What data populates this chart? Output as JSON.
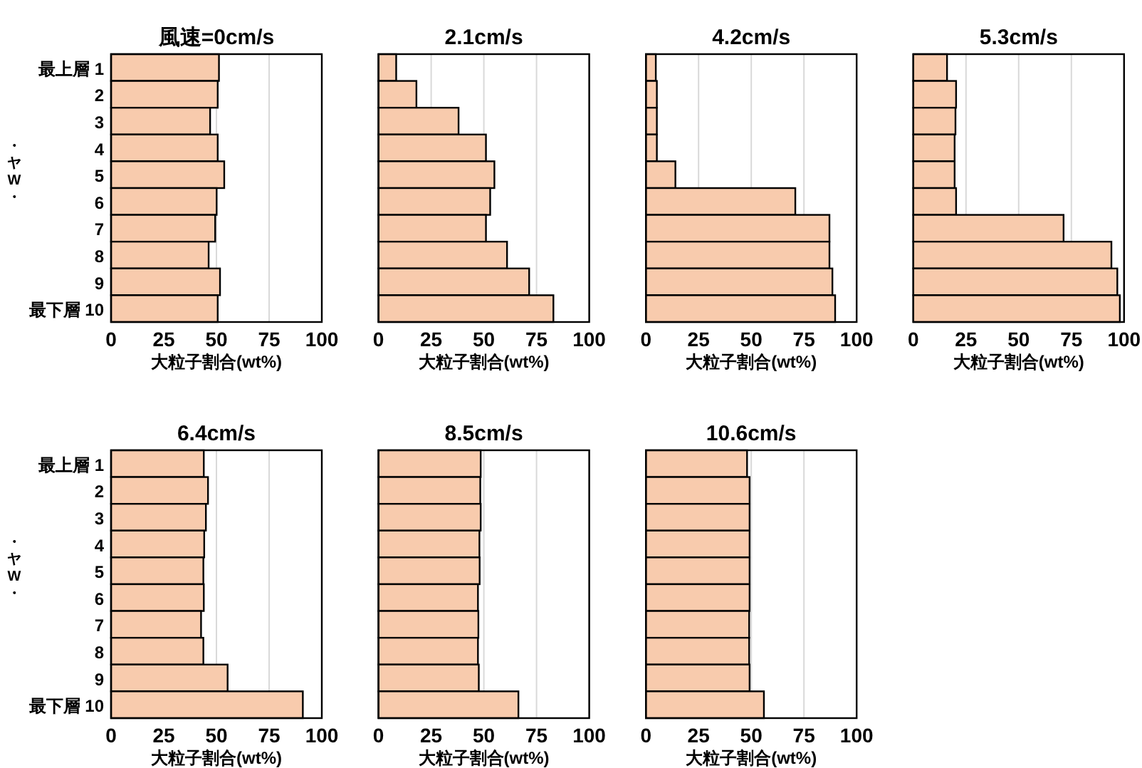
{
  "chart_data": [
    {
      "type": "bar",
      "orientation": "horizontal",
      "title": "風速=0cm/s",
      "xlabel": "大粒子割合(wt%)",
      "ylabel": "・ヤW・",
      "categories": [
        "最上層 1",
        "2",
        "3",
        "4",
        "5",
        "6",
        "7",
        "8",
        "9",
        "最下層 10"
      ],
      "values": [
        51.2,
        50.6,
        47,
        50.6,
        53.7,
        50.1,
        49.4,
        46.3,
        51.7,
        50.6
      ],
      "color": "#f8cbad",
      "xlim": [
        0,
        100
      ],
      "xticks": [
        0,
        25,
        50,
        75,
        100
      ],
      "grid": "x"
    },
    {
      "type": "bar",
      "orientation": "horizontal",
      "title": "2.1cm/s",
      "xlabel": "大粒子割合(wt%)",
      "categories": [
        null,
        null,
        null,
        null,
        null,
        null,
        null,
        null,
        null,
        null
      ],
      "values": [
        8.4,
        18,
        38,
        51,
        55,
        53,
        51,
        61,
        71.5,
        83
      ],
      "color": "#f8cbad",
      "xlim": [
        0,
        100
      ],
      "xticks": [
        0,
        25,
        50,
        75,
        100
      ],
      "grid": "x",
      "tick_labels": "x"
    },
    {
      "type": "bar",
      "orientation": "horizontal",
      "title": "4.2cm/s",
      "xlabel": "大粒子割合(wt%)",
      "categories": [
        null,
        null,
        null,
        null,
        null,
        null,
        null,
        null,
        null,
        null
      ],
      "values": [
        4.7,
        5.2,
        5.2,
        5.2,
        14,
        70.9,
        87.1,
        87.1,
        88.5,
        89.8
      ],
      "color": "#f8cbad",
      "xlim": [
        0,
        100
      ],
      "xticks": [
        0,
        25,
        50,
        75,
        100
      ],
      "grid": "x",
      "tick_labels": "x"
    },
    {
      "type": "bar",
      "orientation": "horizontal",
      "title": "5.3cm/s",
      "xlabel": "大粒子割合(wt%)",
      "categories": [
        null,
        null,
        null,
        null,
        null,
        null,
        null,
        null,
        null,
        null
      ],
      "values": [
        16,
        20.3,
        20,
        19.6,
        19.6,
        20.3,
        71.3,
        94,
        96.8,
        98
      ],
      "color": "#f8cbad",
      "xlim": [
        0,
        100
      ],
      "xticks": [
        0,
        25,
        50,
        75,
        100
      ],
      "grid": "x",
      "tick_labels": "x"
    },
    {
      "type": "bar",
      "orientation": "horizontal",
      "title": "6.4cm/s",
      "xlabel": "大粒子割合(wt%)",
      "ylabel": "・ヤW・",
      "categories": [
        "最上層 1",
        "2",
        "3",
        "4",
        "5",
        "6",
        "7",
        "8",
        "9",
        "最下層 10"
      ],
      "values": [
        44,
        46,
        45,
        44.2,
        43.8,
        44,
        42.7,
        43.8,
        55.3,
        91
      ],
      "color": "#f8cbad",
      "xlim": [
        0,
        100
      ],
      "xticks": [
        0,
        25,
        50,
        75,
        100
      ],
      "grid": "x"
    },
    {
      "type": "bar",
      "orientation": "horizontal",
      "title": "8.5cm/s",
      "xlabel": "大粒子割合(wt%)",
      "categories": [
        null,
        null,
        null,
        null,
        null,
        null,
        null,
        null,
        null,
        null
      ],
      "values": [
        48.5,
        48.3,
        48.5,
        47.9,
        48,
        47.2,
        47.4,
        47.2,
        47.6,
        66.4
      ],
      "color": "#f8cbad",
      "xlim": [
        0,
        100
      ],
      "xticks": [
        0,
        25,
        50,
        75,
        100
      ],
      "grid": "x",
      "tick_labels": "x"
    },
    {
      "type": "bar",
      "orientation": "horizontal",
      "title": "10.6cm/s",
      "xlabel": "大粒子割合(wt%)",
      "categories": [
        null,
        null,
        null,
        null,
        null,
        null,
        null,
        null,
        null,
        null
      ],
      "values": [
        48,
        49.2,
        49.2,
        49.2,
        49.2,
        49.2,
        49,
        49,
        49.2,
        56
      ],
      "color": "#f8cbad",
      "xlim": [
        0,
        100
      ],
      "xticks": [
        0,
        25,
        50,
        75,
        100
      ],
      "grid": "x",
      "tick_labels": "x"
    }
  ]
}
